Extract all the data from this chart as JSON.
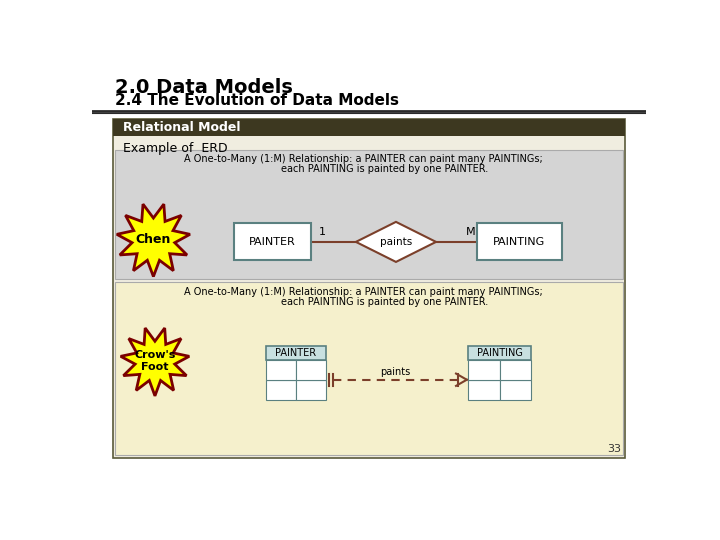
{
  "title1": "2.0 Data Models",
  "title2": "2.4 The Evolution of Data Models",
  "header_text": "Relational Model",
  "header_bg": "#3d3820",
  "header_fg": "#ffffff",
  "slide_bg": "#ffffff",
  "content_bg": "#f0ede0",
  "section1_bg": "#d4d4d4",
  "section2_bg": "#f5f0cc",
  "example_label": "Example of  ERD",
  "chen_text": "Chen",
  "crowsfoot_text": "Crow's\nFoot",
  "burst_fill": "#ffff00",
  "burst_stroke": "#7a0000",
  "chen_desc1": "A One-to-Many (1:M) Relationship: a PAINTER can paint many PAINTINGs;",
  "chen_desc2": "each PAINTING is painted by one PAINTER.",
  "crow_desc1": "A One-to-Many (1:M) Relationship: a PAINTER can paint many PAINTINGs;",
  "crow_desc2": "each PAINTING is painted by one PAINTER.",
  "painter_label": "PAINTER",
  "painting_label": "PAINTING",
  "paints_label": "paints",
  "one_label": "1",
  "many_label": "M",
  "line_color": "#7b3f2a",
  "entity_border": "#5a8080",
  "diamond_fill": "#ffffff",
  "diamond_border": "#7b3f2a",
  "page_number": "33",
  "outer_border": "#5a5a3a",
  "cf_header_bg": "#c8e0e0"
}
